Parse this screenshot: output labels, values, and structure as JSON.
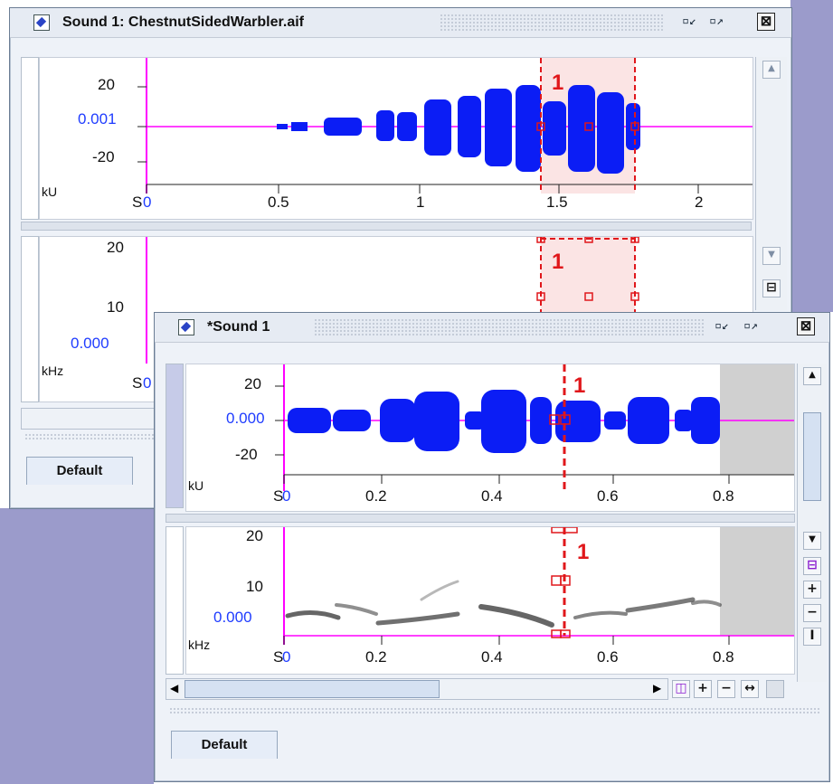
{
  "window1": {
    "title": "Sound 1: ChestnutSidedWarbler.aif",
    "waveform": {
      "y_ticks": [
        "20",
        "0.001",
        "-20"
      ],
      "unit": "kU",
      "x_unit": "S",
      "x_ticks": [
        "0",
        "0.5",
        "1",
        "1.5",
        "2"
      ],
      "selection_label": "1"
    },
    "spectrogram": {
      "y_ticks": [
        "20",
        "10",
        "0.000"
      ],
      "unit": "kHz",
      "x_unit": "S",
      "x_ticks": [
        "0"
      ],
      "selection_label": "1"
    },
    "tab_label": "Default"
  },
  "window2": {
    "title": "*Sound 1",
    "waveform": {
      "y_ticks": [
        "20",
        "0.000",
        "-20"
      ],
      "unit": "kU",
      "x_unit": "S",
      "x_ticks": [
        "0",
        "0.2",
        "0.4",
        "0.6",
        "0.8"
      ],
      "selection_label": "1"
    },
    "spectrogram": {
      "y_ticks": [
        "20",
        "10",
        "0.000"
      ],
      "unit": "kHz",
      "x_unit": "S",
      "x_ticks": [
        "0",
        "0.2",
        "0.4",
        "0.6",
        "0.8"
      ],
      "selection_label": "1"
    },
    "tab_label": "Default"
  },
  "colors": {
    "waveform": "#0b1df5",
    "selection": "#e0171b",
    "baseline": "#ff00ff",
    "desktop": "#9b9bcb"
  },
  "icons": [
    "sound-document-icon",
    "minimize-icon",
    "maximize-icon",
    "close-icon",
    "scroll-up-icon",
    "scroll-down-icon",
    "zoom-in-icon",
    "zoom-out-icon",
    "fit-icon"
  ]
}
